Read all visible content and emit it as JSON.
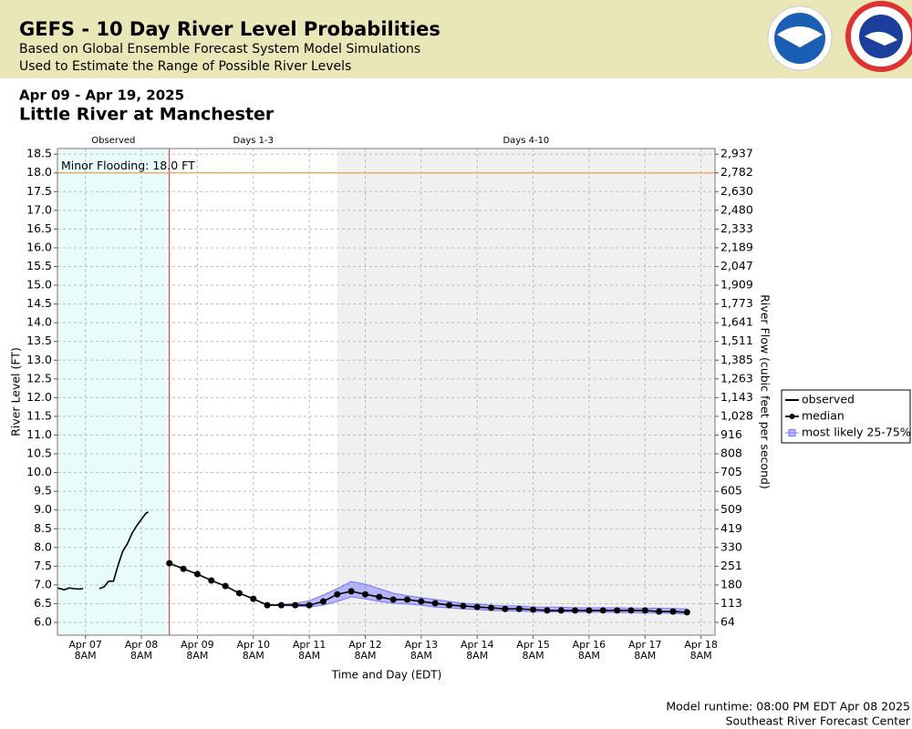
{
  "header": {
    "title": "GEFS - 10 Day River Level Probabilities",
    "subtitle_1": "Based on Global Ensemble Forecast System Model Simulations",
    "subtitle_2": "Used to Estimate the Range of Possible River Levels"
  },
  "date_range": "Apr 09 - Apr 19, 2025",
  "location": "Little River at Manchester",
  "chart_data": {
    "type": "line",
    "ylabel": "River Level (FT)",
    "y2label": "River Flow (cubic feet per second)",
    "xlabel": "Time and Day (EDT)",
    "xlim": [
      "2025-04-06T20:00",
      "2025-04-18T14:00"
    ],
    "xticks": [
      {
        "value": "2025-04-07T08:00",
        "label": "Apr 07 8AM"
      },
      {
        "value": "2025-04-08T08:00",
        "label": "Apr 08 8AM"
      },
      {
        "value": "2025-04-09T08:00",
        "label": "Apr 09 8AM"
      },
      {
        "value": "2025-04-10T08:00",
        "label": "Apr 10 8AM"
      },
      {
        "value": "2025-04-11T08:00",
        "label": "Apr 11 8AM"
      },
      {
        "value": "2025-04-12T08:00",
        "label": "Apr 12 8AM"
      },
      {
        "value": "2025-04-13T08:00",
        "label": "Apr 13 8AM"
      },
      {
        "value": "2025-04-14T08:00",
        "label": "Apr 14 8AM"
      },
      {
        "value": "2025-04-15T08:00",
        "label": "Apr 15 8AM"
      },
      {
        "value": "2025-04-16T08:00",
        "label": "Apr 16 8AM"
      },
      {
        "value": "2025-04-17T08:00",
        "label": "Apr 17 8AM"
      },
      {
        "value": "2025-04-18T08:00",
        "label": "Apr 18 8AM"
      }
    ],
    "ylim": [
      5.66,
      18.65
    ],
    "yticks": [
      {
        "value": 6,
        "label": "6.0"
      },
      6.5,
      {
        "value": 7,
        "label": "7.0"
      },
      7.5,
      {
        "value": 8,
        "label": "8.0"
      },
      8.5,
      {
        "value": 9,
        "label": "9.0"
      },
      9.5,
      {
        "value": 10,
        "label": "10.0"
      },
      10.5,
      {
        "value": 11,
        "label": "11.0"
      },
      11.5,
      {
        "value": 12,
        "label": "12.0"
      },
      12.5,
      {
        "value": 13,
        "label": "13.0"
      },
      13.5,
      {
        "value": 14,
        "label": "14.0"
      },
      14.5,
      {
        "value": 15,
        "label": "15.0"
      },
      15.5,
      {
        "value": 16,
        "label": "16.0"
      },
      16.5,
      {
        "value": 17,
        "label": "17.0"
      },
      17.5,
      {
        "value": 18,
        "label": "18.0"
      },
      18.5
    ],
    "y2ticks": [
      64,
      113,
      180,
      251,
      330,
      419,
      509,
      605,
      705,
      808,
      916,
      {
        "value": 1028,
        "label": "1,028"
      },
      {
        "value": 1143,
        "label": "1,143"
      },
      {
        "value": 1263,
        "label": "1,263"
      },
      {
        "value": 1385,
        "label": "1,385"
      },
      {
        "value": 1511,
        "label": "1,511"
      },
      {
        "value": 1641,
        "label": "1,641"
      },
      {
        "value": 1773,
        "label": "1,773"
      },
      {
        "value": 1909,
        "label": "1,909"
      },
      {
        "value": 2047,
        "label": "2,047"
      },
      {
        "value": 2189,
        "label": "2,189"
      },
      {
        "value": 2333,
        "label": "2,333"
      },
      {
        "value": 2480,
        "label": "2,480"
      },
      {
        "value": 2630,
        "label": "2,630"
      },
      {
        "value": 2782,
        "label": "2,782"
      },
      {
        "value": 2937,
        "label": "2,937"
      }
    ],
    "grid": true,
    "legend": "right",
    "periods": [
      {
        "label": "Observed",
        "start": "2025-04-06T20:00",
        "end": "2025-04-08T20:00",
        "color": "#e8fcfc"
      },
      {
        "label": "Days 1-3",
        "start": "2025-04-08T20:00",
        "end": "2025-04-11T20:00",
        "color": "#ffffff"
      },
      {
        "label": "Days 4-10",
        "start": "2025-04-11T20:00",
        "end": "2025-04-18T14:00",
        "color": "#f0f0f0"
      }
    ],
    "thresholds": [
      {
        "label": "Minor Flooding: 18.0 FT",
        "value": 18,
        "color": "#f0a050"
      }
    ],
    "series": [
      {
        "name": "observed",
        "color": "#000000",
        "x": [
          "2025-04-06T20:00",
          "2025-04-06T23:00",
          "2025-04-07T01:00",
          "2025-04-07T03:00",
          "2025-04-07T05:00",
          "2025-04-07T07:00",
          "2025-04-07T10:00",
          "2025-04-07T14:00",
          "2025-04-07T16:00",
          "2025-04-07T18:00",
          "2025-04-07T20:00",
          "2025-04-07T22:00",
          "2025-04-08T00:00",
          "2025-04-08T02:00",
          "2025-04-08T04:00",
          "2025-04-08T06:00",
          "2025-04-08T08:00",
          "2025-04-08T10:00",
          "2025-04-08T11:00"
        ],
        "values": [
          6.92,
          6.87,
          6.92,
          6.9,
          6.89,
          6.9,
          null,
          6.9,
          6.95,
          7.1,
          7.1,
          7.53,
          7.9,
          8.1,
          8.38,
          8.58,
          8.75,
          8.92,
          8.95
        ]
      },
      {
        "name": "median",
        "color": "#000000",
        "markers": true,
        "x": [
          "2025-04-08T20:00",
          "2025-04-09T02:00",
          "2025-04-09T08:00",
          "2025-04-09T14:00",
          "2025-04-09T20:00",
          "2025-04-10T02:00",
          "2025-04-10T08:00",
          "2025-04-10T14:00",
          "2025-04-10T20:00",
          "2025-04-11T02:00",
          "2025-04-11T08:00",
          "2025-04-11T14:00",
          "2025-04-11T20:00",
          "2025-04-12T02:00",
          "2025-04-12T08:00",
          "2025-04-12T14:00",
          "2025-04-12T20:00",
          "2025-04-13T02:00",
          "2025-04-13T08:00",
          "2025-04-13T14:00",
          "2025-04-13T20:00",
          "2025-04-14T02:00",
          "2025-04-14T08:00",
          "2025-04-14T14:00",
          "2025-04-14T20:00",
          "2025-04-15T02:00",
          "2025-04-15T08:00",
          "2025-04-15T14:00",
          "2025-04-15T20:00",
          "2025-04-16T02:00",
          "2025-04-16T08:00",
          "2025-04-16T14:00",
          "2025-04-16T20:00",
          "2025-04-17T02:00",
          "2025-04-17T08:00",
          "2025-04-17T14:00",
          "2025-04-17T20:00",
          "2025-04-18T02:00"
        ],
        "values": [
          7.58,
          7.43,
          7.29,
          7.12,
          6.97,
          6.78,
          6.63,
          6.46,
          6.46,
          6.46,
          6.46,
          6.56,
          6.75,
          6.83,
          6.75,
          6.68,
          6.61,
          6.61,
          6.56,
          6.51,
          6.46,
          6.44,
          6.41,
          6.39,
          6.36,
          6.36,
          6.34,
          6.32,
          6.32,
          6.32,
          6.32,
          6.32,
          6.32,
          6.32,
          6.32,
          6.29,
          6.29,
          6.27
        ]
      },
      {
        "name": "most likely 25-75%",
        "color": "#7777ff",
        "upper": [
          7.58,
          7.43,
          7.29,
          7.12,
          6.97,
          6.78,
          6.63,
          6.46,
          6.48,
          6.51,
          6.58,
          6.73,
          6.9,
          7.09,
          7.02,
          6.9,
          6.78,
          6.71,
          6.66,
          6.61,
          6.56,
          6.51,
          6.49,
          6.46,
          6.44,
          6.44,
          6.41,
          6.41,
          6.41,
          6.39,
          6.39,
          6.39,
          6.39,
          6.38,
          6.38,
          6.38,
          6.37,
          6.36
        ],
        "lower": [
          7.58,
          7.43,
          7.29,
          7.12,
          6.97,
          6.78,
          6.63,
          6.46,
          6.45,
          6.44,
          6.41,
          6.46,
          6.56,
          6.68,
          6.63,
          6.56,
          6.51,
          6.49,
          6.46,
          6.41,
          6.39,
          6.36,
          6.34,
          6.32,
          6.31,
          6.3,
          6.29,
          6.28,
          6.28,
          6.27,
          6.27,
          6.27,
          6.26,
          6.26,
          6.25,
          6.25,
          6.24,
          6.22
        ]
      }
    ]
  },
  "footer": {
    "runtime": "Model runtime: 08:00 PM EDT Apr 08 2025",
    "center": "Southeast River Forecast Center"
  }
}
